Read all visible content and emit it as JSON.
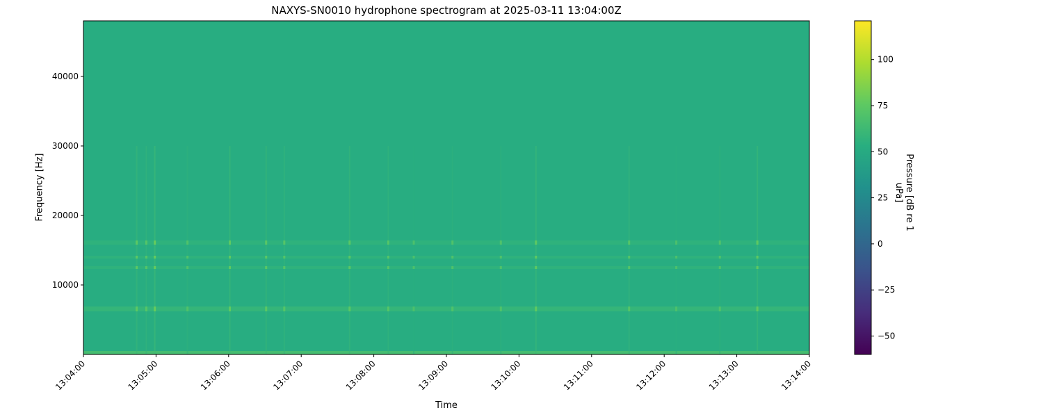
{
  "chart_data": {
    "type": "heatmap",
    "title": "NAXYS-SN0010 hydrophone spectrogram at 2025-03-11 13:04:00Z",
    "xlabel": "Time",
    "ylabel": "Frequency [Hz]",
    "colorbar_label": "Pressure [dB re 1 uPa]",
    "colormap": "viridis",
    "xlim": [
      "13:04:00",
      "13:14:00"
    ],
    "ylim": [
      0,
      48000
    ],
    "clim": [
      -60,
      121
    ],
    "x_ticks": [
      "13:04:00",
      "13:05:00",
      "13:06:00",
      "13:07:00",
      "13:08:00",
      "13:09:00",
      "13:10:00",
      "13:11:00",
      "13:12:00",
      "13:13:00",
      "13:14:00"
    ],
    "y_ticks": [
      10000,
      20000,
      30000,
      40000
    ],
    "colorbar_ticks": [
      -50,
      -25,
      0,
      25,
      50,
      75,
      100
    ],
    "background_level_db": 52,
    "frequency_bands": [
      {
        "freq_low": 0,
        "freq_high": 500,
        "db": 68
      },
      {
        "freq_low": 6200,
        "freq_high": 6900,
        "db": 60
      },
      {
        "freq_low": 12300,
        "freq_high": 12700,
        "db": 57
      },
      {
        "freq_low": 13800,
        "freq_high": 14200,
        "db": 57
      },
      {
        "freq_low": 15800,
        "freq_high": 16400,
        "db": 57
      }
    ],
    "transient_events": [
      {
        "time": "13:04:44",
        "db": 75
      },
      {
        "time": "13:04:52",
        "db": 72
      },
      {
        "time": "13:04:59",
        "db": 78
      },
      {
        "time": "13:05:26",
        "db": 70
      },
      {
        "time": "13:06:01",
        "db": 76
      },
      {
        "time": "13:06:31",
        "db": 74
      },
      {
        "time": "13:06:46",
        "db": 72
      },
      {
        "time": "13:07:40",
        "db": 74
      },
      {
        "time": "13:08:12",
        "db": 72
      },
      {
        "time": "13:08:33",
        "db": 68
      },
      {
        "time": "13:09:05",
        "db": 70
      },
      {
        "time": "13:09:45",
        "db": 70
      },
      {
        "time": "13:10:14",
        "db": 76
      },
      {
        "time": "13:11:31",
        "db": 72
      },
      {
        "time": "13:12:10",
        "db": 68
      },
      {
        "time": "13:12:46",
        "db": 70
      },
      {
        "time": "13:13:17",
        "db": 76
      }
    ],
    "grid": false
  }
}
